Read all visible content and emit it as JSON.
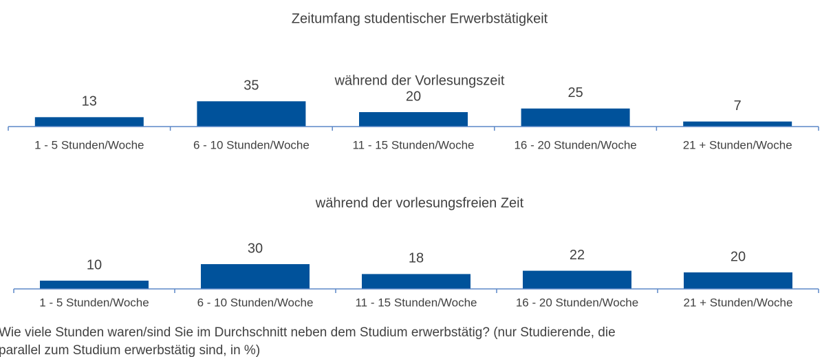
{
  "title": "Zeitumfang studentischer Erwerbstätigkeit",
  "caption": [
    "Wie viele Stunden waren/sind Sie im Durchschnitt neben dem Studium erwerbstätig? (nur Studierende, die",
    "parallel zum Studium erwerbstätig sind, in %)"
  ],
  "chart_data": [
    {
      "type": "bar",
      "title": "während der Vorlesungszeit",
      "categories": [
        "1 - 5 Stunden/Woche",
        "6 - 10 Stunden/Woche",
        "11 - 15 Stunden/Woche",
        "16 - 20 Stunden/Woche",
        "21 + Stunden/Woche"
      ],
      "values": [
        13,
        35,
        20,
        25,
        7
      ],
      "color": "#00529b"
    },
    {
      "type": "bar",
      "title": "während der vorlesungsfreien Zeit",
      "categories": [
        "1 - 5 Stunden/Woche",
        "6 - 10 Stunden/Woche",
        "11 - 15 Stunden/Woche",
        "16 - 20 Stunden/Woche",
        "21 + Stunden/Woche"
      ],
      "values": [
        10,
        30,
        18,
        22,
        20
      ],
      "color": "#00529b"
    }
  ]
}
